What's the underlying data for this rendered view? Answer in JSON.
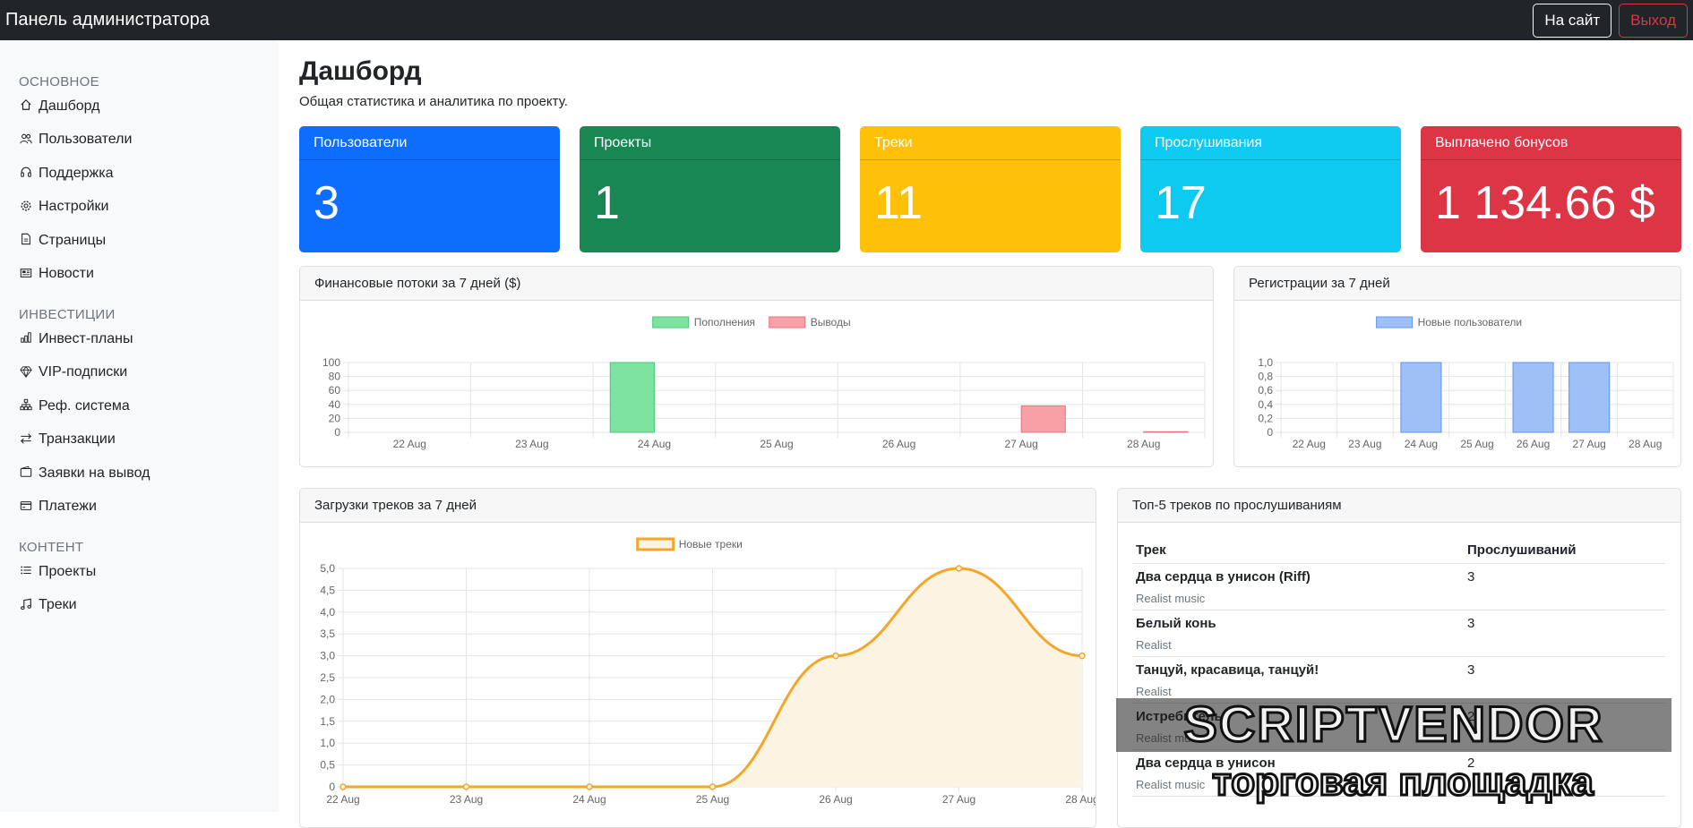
{
  "navbar": {
    "title": "Панель администратора",
    "site_label": "На сайт",
    "exit_label": "Выход"
  },
  "sidebar": {
    "groups": [
      {
        "heading": "Основное",
        "items": [
          {
            "label": "Дашборд",
            "icon": "house-icon"
          },
          {
            "label": "Пользователи",
            "icon": "people-icon"
          },
          {
            "label": "Поддержка",
            "icon": "headset-icon"
          },
          {
            "label": "Настройки",
            "icon": "gear-icon"
          },
          {
            "label": "Страницы",
            "icon": "file-icon"
          },
          {
            "label": "Новости",
            "icon": "newspaper-icon"
          }
        ]
      },
      {
        "heading": "Инвестиции",
        "items": [
          {
            "label": "Инвест-планы",
            "icon": "bar-chart-icon"
          },
          {
            "label": "VIP-подписки",
            "icon": "gem-icon"
          },
          {
            "label": "Реф. система",
            "icon": "diagram-icon"
          },
          {
            "label": "Транзакции",
            "icon": "arrows-icon"
          },
          {
            "label": "Заявки на вывод",
            "icon": "wallet-icon"
          },
          {
            "label": "Платежи",
            "icon": "credit-card-icon"
          }
        ]
      },
      {
        "heading": "Контент",
        "items": [
          {
            "label": "Проекты",
            "icon": "list-icon"
          },
          {
            "label": "Треки",
            "icon": "music-note-icon"
          }
        ]
      }
    ]
  },
  "page": {
    "title": "Дашборд",
    "subtitle": "Общая статистика и аналитика по проекту."
  },
  "stats": [
    {
      "label": "Пользователи",
      "value": "3",
      "color": "#0d6efd"
    },
    {
      "label": "Проекты",
      "value": "1",
      "color": "#198754"
    },
    {
      "label": "Треки",
      "value": "11",
      "color": "#ffc107"
    },
    {
      "label": "Прослушивания",
      "value": "17",
      "color": "#0dcaf0"
    },
    {
      "label": "Выплачено бонусов",
      "value": "1 134.66 $",
      "color": "#dc3545"
    }
  ],
  "cards": {
    "finance_title": "Финансовые потоки за 7 дней ($)",
    "reg_title": "Регистрации за 7 дней",
    "uploads_title": "Загрузки треков за 7 дней",
    "top_title": "Топ-5 треков по прослушиваниям"
  },
  "chart_data": [
    {
      "type": "bar",
      "title": "Финансовые потоки за 7 дней ($)",
      "categories": [
        "22 Aug",
        "23 Aug",
        "24 Aug",
        "25 Aug",
        "26 Aug",
        "27 Aug",
        "28 Aug"
      ],
      "series": [
        {
          "name": "Пополнения",
          "values": [
            0,
            0,
            100,
            0,
            0,
            0,
            0
          ],
          "color": "#7ee2a0",
          "border": "#4cc47a"
        },
        {
          "name": "Выводы",
          "values": [
            0,
            0,
            0,
            0,
            0,
            38,
            1
          ],
          "color": "#f7a1a7",
          "border": "#e9747d"
        }
      ],
      "yticks": [
        "0",
        "20",
        "40",
        "60",
        "80",
        "100"
      ],
      "ylim": [
        0,
        100
      ],
      "grid": true,
      "legend": "top"
    },
    {
      "type": "bar",
      "title": "Регистрации за 7 дней",
      "categories": [
        "22 Aug",
        "23 Aug",
        "24 Aug",
        "25 Aug",
        "26 Aug",
        "27 Aug",
        "28 Aug"
      ],
      "series": [
        {
          "name": "Новые пользователи",
          "values": [
            0,
            0,
            1,
            0,
            1,
            1,
            0
          ],
          "color": "#9ec0f7",
          "border": "#5e95ee"
        }
      ],
      "yticks": [
        "0",
        "0,2",
        "0,4",
        "0,6",
        "0,8",
        "1,0"
      ],
      "ylim": [
        0,
        1
      ],
      "grid": true,
      "legend": "top"
    },
    {
      "type": "line",
      "title": "Загрузки треков за 7 дней",
      "categories": [
        "22 Aug",
        "23 Aug",
        "24 Aug",
        "25 Aug",
        "26 Aug",
        "27 Aug",
        "28 Aug"
      ],
      "series": [
        {
          "name": "Новые треки",
          "values": [
            0,
            0,
            0,
            0,
            3,
            5,
            3
          ],
          "color": "#f4a62a",
          "fill": "#fdf3e2"
        }
      ],
      "yticks": [
        "0",
        "0,5",
        "1,0",
        "1,5",
        "2,0",
        "2,5",
        "3,0",
        "3,5",
        "4,0",
        "4,5",
        "5,0"
      ],
      "ylim": [
        0,
        5
      ],
      "grid": true,
      "legend": "top"
    }
  ],
  "top_tracks": {
    "col_track": "Трек",
    "col_plays": "Прослушиваний",
    "rows": [
      {
        "title": "Два сердца в унисон (Riff)",
        "artist": "Realist music",
        "plays": "3"
      },
      {
        "title": "Белый конь",
        "artist": "Realist",
        "plays": "3"
      },
      {
        "title": "Танцуй, красавица, танцуй!",
        "artist": "Realist",
        "plays": "3"
      },
      {
        "title": "Истребитель",
        "artist": "Realist music",
        "plays": "2"
      },
      {
        "title": "Два сердца в унисон",
        "artist": "Realist music",
        "plays": "2"
      }
    ]
  },
  "watermark": {
    "line1": "SCRIPTVENDOR",
    "line2": "торговая площадка"
  }
}
